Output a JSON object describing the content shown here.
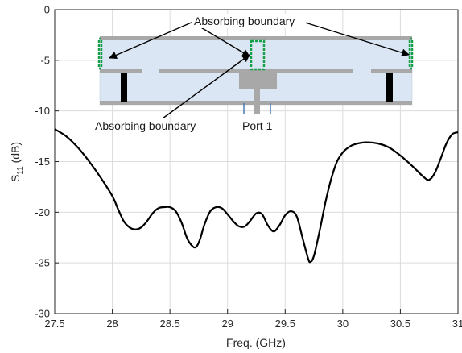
{
  "chart_data": {
    "type": "line",
    "xlabel": "Freq. (GHz)",
    "ylabel_main": "S",
    "ylabel_sub": "11",
    "ylabel_unit": " (dB)",
    "xlim": [
      27.5,
      31
    ],
    "ylim": [
      -30,
      0
    ],
    "x_ticks": [
      27.5,
      28,
      28.5,
      29,
      29.5,
      30,
      30.5,
      31
    ],
    "x_tick_labels": [
      "27.5",
      "28",
      "28.5",
      "29",
      "29.5",
      "30",
      "30.5",
      "31"
    ],
    "y_ticks": [
      0,
      -5,
      -10,
      -15,
      -20,
      -25,
      -30
    ],
    "y_tick_labels": [
      "0",
      "-5",
      "-10",
      "-15",
      "-20",
      "-25",
      "-30"
    ],
    "grid": true,
    "series": [
      {
        "color": "#000000",
        "x": [
          27.5,
          27.6,
          27.7,
          27.8,
          27.9,
          28.0,
          28.05,
          28.1,
          28.15,
          28.2,
          28.25,
          28.3,
          28.35,
          28.4,
          28.45,
          28.5,
          28.55,
          28.6,
          28.65,
          28.7,
          28.73,
          28.76,
          28.8,
          28.85,
          28.9,
          28.95,
          29.0,
          29.05,
          29.1,
          29.15,
          29.2,
          29.25,
          29.3,
          29.35,
          29.4,
          29.45,
          29.5,
          29.55,
          29.6,
          29.65,
          29.7,
          29.72,
          29.75,
          29.8,
          29.85,
          29.9,
          29.95,
          30.0,
          30.05,
          30.1,
          30.2,
          30.3,
          30.4,
          30.5,
          30.6,
          30.7,
          30.75,
          30.8,
          30.85,
          30.9,
          30.95,
          31.0
        ],
        "y": [
          -11.8,
          -12.5,
          -13.6,
          -15.0,
          -16.6,
          -18.4,
          -19.7,
          -20.9,
          -21.5,
          -21.7,
          -21.5,
          -20.9,
          -20.1,
          -19.6,
          -19.5,
          -19.5,
          -19.9,
          -21.0,
          -22.6,
          -23.4,
          -23.4,
          -22.7,
          -21.2,
          -19.9,
          -19.5,
          -19.6,
          -20.2,
          -20.9,
          -21.4,
          -21.4,
          -20.8,
          -20.1,
          -20.2,
          -21.3,
          -21.9,
          -21.3,
          -20.3,
          -19.9,
          -20.4,
          -22.5,
          -24.6,
          -24.9,
          -24.3,
          -21.8,
          -19.0,
          -16.7,
          -15.0,
          -14.1,
          -13.6,
          -13.3,
          -13.1,
          -13.2,
          -13.6,
          -14.4,
          -15.4,
          -16.5,
          -16.8,
          -16.1,
          -14.7,
          -13.2,
          -12.3,
          -12.1
        ]
      }
    ],
    "annotations": [
      {
        "id": "absorbing-top",
        "text": "Absorbing boundary"
      },
      {
        "id": "absorbing-bottom",
        "text": "Absorbing boundary"
      },
      {
        "id": "port",
        "text": "Port 1"
      }
    ]
  }
}
